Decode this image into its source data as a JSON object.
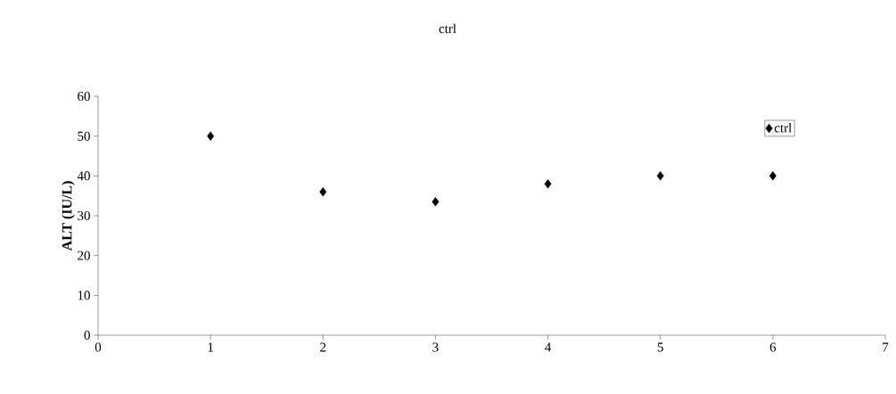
{
  "chart_data": {
    "type": "scatter",
    "title": "ctrl",
    "ylabel": "ALT (IU/L)",
    "x": [
      1,
      2,
      3,
      4,
      5,
      6
    ],
    "series": [
      {
        "name": "ctrl",
        "color": "#000000",
        "values": [
          50,
          36,
          33.5,
          38,
          40,
          40
        ]
      }
    ],
    "xlim": [
      0,
      7
    ],
    "xticks": [
      0,
      1,
      2,
      3,
      4,
      5,
      6,
      7
    ],
    "ylim": [
      0,
      60
    ],
    "yticks": [
      0,
      10,
      20,
      30,
      40,
      50,
      60
    ],
    "grid": false,
    "legend": "top right",
    "marker": "diamond"
  }
}
